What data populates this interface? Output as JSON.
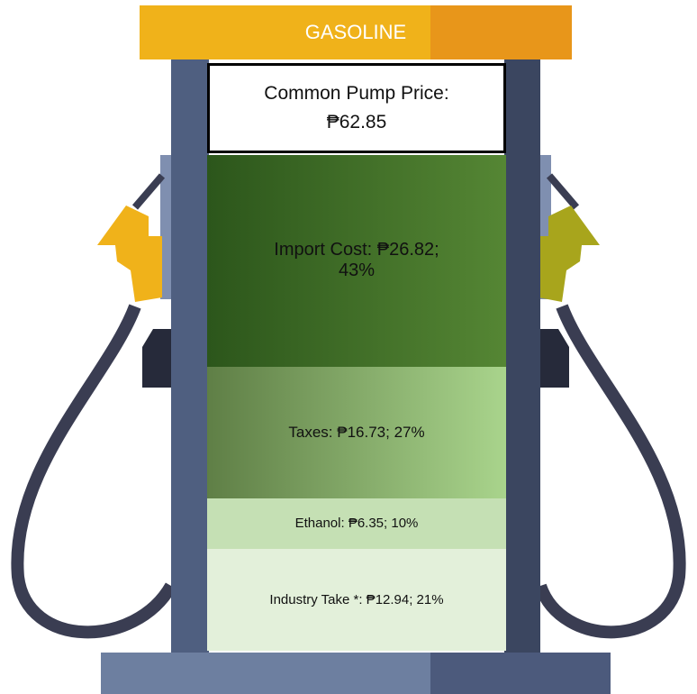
{
  "chart_data": {
    "type": "stacked-column",
    "title": "GASOLINE",
    "total_label": "Common Pump Price:",
    "total_value_label": "₱62.85",
    "segments": [
      {
        "label": "Import Cost: ₱26.82; 43%",
        "value": 26.82,
        "colors": [
          "#2c561b",
          "#558634"
        ]
      },
      {
        "label": "Taxes: ₱16.73; 27%",
        "value": 16.73,
        "colors": [
          "#5f7f46",
          "#a9d48c"
        ]
      },
      {
        "label": "Ethanol: ₱6.35; 10%",
        "value": 6.35,
        "colors": [
          "#c5e0b4",
          "#c5e0b4"
        ]
      },
      {
        "label": "Industry Take *: ₱12.94; 21%",
        "value": 12.94,
        "colors": [
          "#e3f0da",
          "#e3f0da"
        ]
      }
    ]
  }
}
